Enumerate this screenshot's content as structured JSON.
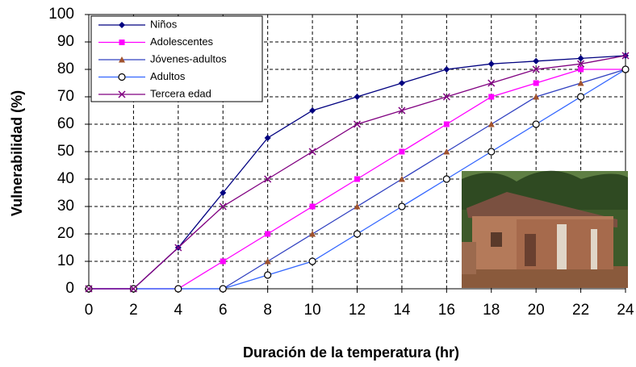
{
  "chart_data": {
    "type": "line",
    "x_label": "Duración de la temperatura (hr)",
    "y_label": "Vulnerabilidad (%)",
    "x": [
      0,
      2,
      4,
      6,
      8,
      10,
      12,
      14,
      16,
      18,
      20,
      22,
      24
    ],
    "xlim": [
      0,
      24
    ],
    "xticks": [
      0,
      2,
      4,
      6,
      8,
      10,
      12,
      14,
      16,
      18,
      20,
      22,
      24
    ],
    "ylim": [
      0,
      100
    ],
    "yticks": [
      0,
      10,
      20,
      30,
      40,
      50,
      60,
      70,
      80,
      90,
      100
    ],
    "grid": true,
    "legend": "top-left",
    "series": [
      {
        "name": "Niños",
        "color": "#000080",
        "marker": "diamond",
        "values": [
          0,
          0,
          15,
          35,
          55,
          65,
          70,
          75,
          80,
          82,
          83,
          84,
          85
        ]
      },
      {
        "name": "Adolescentes",
        "color": "#ff00ff",
        "marker": "square",
        "values": [
          0,
          0,
          0,
          10,
          20,
          30,
          40,
          50,
          60,
          70,
          75,
          80,
          80
        ]
      },
      {
        "name": "Jóvenes-adultos",
        "color": "#3040c0",
        "marker": "triangle",
        "values": [
          0,
          0,
          0,
          0,
          10,
          20,
          30,
          40,
          50,
          60,
          70,
          75,
          80
        ]
      },
      {
        "name": "Adultos",
        "color": "#3366ff",
        "marker": "circle",
        "values": [
          0,
          0,
          0,
          0,
          5,
          10,
          20,
          30,
          40,
          50,
          60,
          70,
          80
        ]
      },
      {
        "name": "Tercera edad",
        "color": "#800080",
        "marker": "cross",
        "values": [
          0,
          0,
          15,
          30,
          40,
          50,
          60,
          65,
          70,
          75,
          80,
          82,
          85
        ]
      }
    ]
  }
}
